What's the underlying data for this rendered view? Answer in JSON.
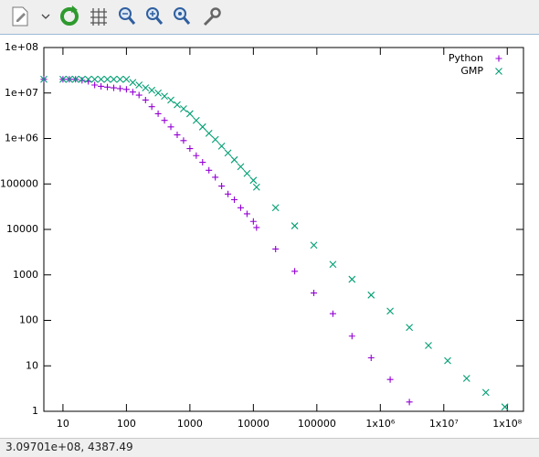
{
  "chart_data": {
    "type": "scatter",
    "log_x": true,
    "log_y": true,
    "xlim": [
      5,
      180000000
    ],
    "ylim": [
      1,
      100000000
    ],
    "xticks": [
      10,
      100,
      1000,
      10000,
      100000,
      {
        "value": 1000000,
        "label": "1x10⁶"
      },
      {
        "value": 10000000,
        "label": "1x10⁷"
      },
      {
        "value": 100000000,
        "label": "1x10⁸"
      }
    ],
    "yticks": [
      1,
      10,
      100,
      1000,
      10000,
      100000,
      {
        "value": 1000000,
        "label": "1e+06"
      },
      {
        "value": 10000000,
        "label": "1e+07"
      },
      {
        "value": 100000000,
        "label": "1e+08"
      }
    ],
    "legend": "top-right",
    "series": [
      {
        "name": "Python",
        "color": "#9400d3",
        "marker": "plus",
        "x": [
          5,
          10,
          12.6,
          15.8,
          20,
          25.1,
          31.6,
          39.8,
          50.1,
          63.1,
          79.4,
          100,
          126,
          158,
          200,
          251,
          316,
          398,
          501,
          631,
          794,
          1000,
          1259,
          1585,
          1995,
          2512,
          3162,
          3981,
          5012,
          6310,
          7943,
          10000,
          11220,
          22400,
          44800,
          89600,
          179000,
          358000,
          717000,
          1430000,
          2870000
        ],
        "values": [
          20000000,
          20000000,
          20000000,
          20000000,
          19000000,
          18000000,
          15000000,
          14000000,
          13500000,
          13000000,
          12500000,
          12000000,
          10500000,
          9000000,
          7000000,
          5000000,
          3500000,
          2500000,
          1800000,
          1200000,
          900000,
          600000,
          420000,
          300000,
          200000,
          140000,
          90000,
          60000,
          45000,
          30000,
          22000,
          15000,
          11000,
          3700,
          1200,
          400,
          140,
          45,
          15,
          5,
          1.6
        ]
      },
      {
        "name": "GMP",
        "color": "#009e73",
        "marker": "cross",
        "x": [
          5,
          10,
          12.6,
          15.8,
          20,
          25.1,
          31.6,
          39.8,
          50.1,
          63.1,
          79.4,
          100,
          126,
          158,
          200,
          251,
          316,
          398,
          501,
          631,
          794,
          1000,
          1259,
          1585,
          1995,
          2512,
          3162,
          3981,
          5012,
          6310,
          7943,
          10000,
          11220,
          22400,
          44800,
          89600,
          179000,
          358000,
          717000,
          1430000,
          2870000,
          5730000,
          11500000,
          22900000,
          45900000,
          91700000
        ],
        "values": [
          20000000,
          20000000,
          20000000,
          20000000,
          20000000,
          20000000,
          20000000,
          20000000,
          20000000,
          20000000,
          20000000,
          20000000,
          17000000,
          15000000,
          13000000,
          11500000,
          10000000,
          8500000,
          7000000,
          5500000,
          4500000,
          3500000,
          2500000,
          1800000,
          1300000,
          950000,
          680000,
          480000,
          340000,
          240000,
          170000,
          120000,
          85000,
          30000,
          12000,
          4500,
          1700,
          800,
          360,
          160,
          70,
          28,
          13,
          5.3,
          2.6,
          1.25
        ]
      }
    ]
  },
  "status": {
    "text": "3.09701e+08,  4387.49"
  }
}
